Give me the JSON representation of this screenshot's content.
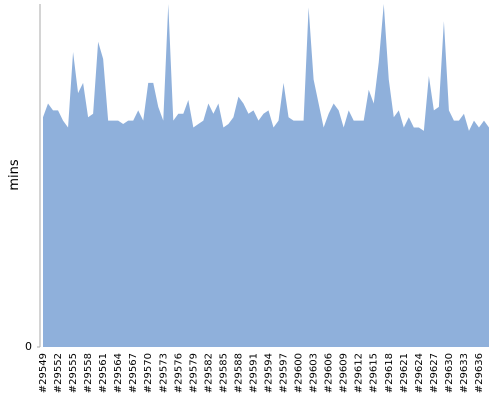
{
  "chart_data": {
    "type": "area",
    "y_label": "mins",
    "color": "#8fb0db",
    "categories": [
      "#29549",
      null,
      null,
      "#29552",
      null,
      null,
      "#29555",
      null,
      null,
      "#29558",
      null,
      null,
      "#29561",
      null,
      null,
      "#29564",
      null,
      null,
      "#29567",
      null,
      null,
      "#29570",
      null,
      null,
      "#29573",
      null,
      null,
      "#29576",
      null,
      null,
      "#29579",
      null,
      null,
      "#29582",
      null,
      null,
      "#29585",
      null,
      null,
      "#29588",
      null,
      null,
      "#29591",
      null,
      null,
      "#29594",
      null,
      null,
      "#29597",
      null,
      null,
      "#29600",
      null,
      null,
      "#29603",
      null,
      null,
      "#29606",
      null,
      null,
      "#29609",
      null,
      null,
      "#29612",
      null,
      null,
      "#29615",
      null,
      null,
      "#29618",
      null,
      null,
      "#29621",
      null,
      null,
      "#29624",
      null,
      null,
      "#29627",
      null,
      null,
      "#29630",
      null,
      null,
      "#29633",
      null,
      null,
      "#29636",
      null,
      null
    ],
    "values": [
      67,
      71,
      69,
      69,
      66,
      64,
      86,
      74,
      77,
      67,
      68,
      89,
      84,
      66,
      66,
      66,
      65,
      66,
      66,
      69,
      66,
      77,
      77,
      70,
      66,
      100,
      66,
      68,
      68,
      72,
      64,
      65,
      66,
      71,
      68,
      71,
      64,
      65,
      67,
      73,
      71,
      68,
      69,
      66,
      68,
      69,
      64,
      66,
      77,
      67,
      66,
      66,
      66,
      99,
      78,
      71,
      64,
      68,
      71,
      69,
      64,
      69,
      66,
      66,
      66,
      75,
      71,
      83,
      100,
      78,
      67,
      69,
      64,
      67,
      64,
      64,
      63,
      79,
      69,
      70,
      95,
      69,
      66,
      66,
      68,
      63,
      66,
      64,
      66,
      64
    ],
    "ylim": [
      0,
      100
    ],
    "yticks": [
      0
    ]
  }
}
